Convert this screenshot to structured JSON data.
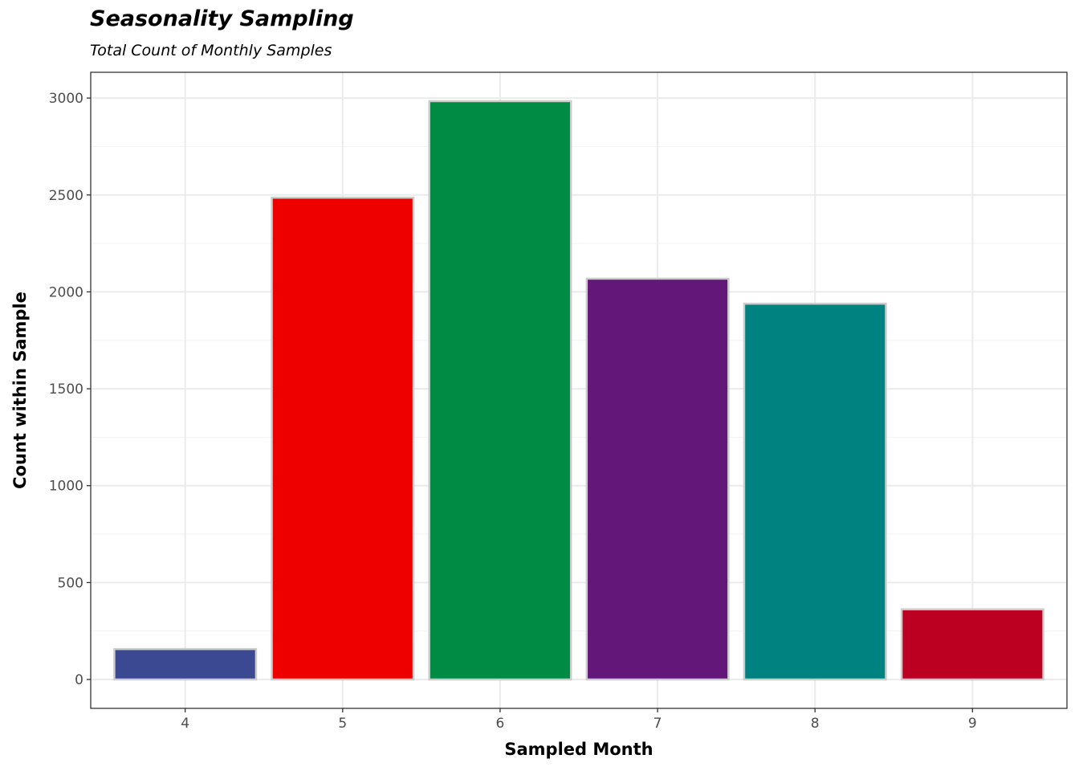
{
  "chart_data": {
    "type": "bar",
    "title": "Seasonality Sampling",
    "subtitle": "Total Count of Monthly Samples",
    "xlabel": "Sampled Month",
    "ylabel": "Count within Sample",
    "categories": [
      "4",
      "5",
      "6",
      "7",
      "8",
      "9"
    ],
    "values": [
      157,
      2486,
      2984,
      2068,
      1939,
      362
    ],
    "colors": [
      "#3B4992",
      "#EE0000",
      "#008B45",
      "#631879",
      "#008280",
      "#BB0021"
    ],
    "bar_outline": "#cccccc",
    "yticks": [
      0,
      500,
      1000,
      1500,
      2000,
      2500,
      3000
    ],
    "ylim": [
      -149,
      3133
    ],
    "xlim": [
      3.4,
      9.6
    ],
    "grid": true,
    "legend": "none"
  }
}
